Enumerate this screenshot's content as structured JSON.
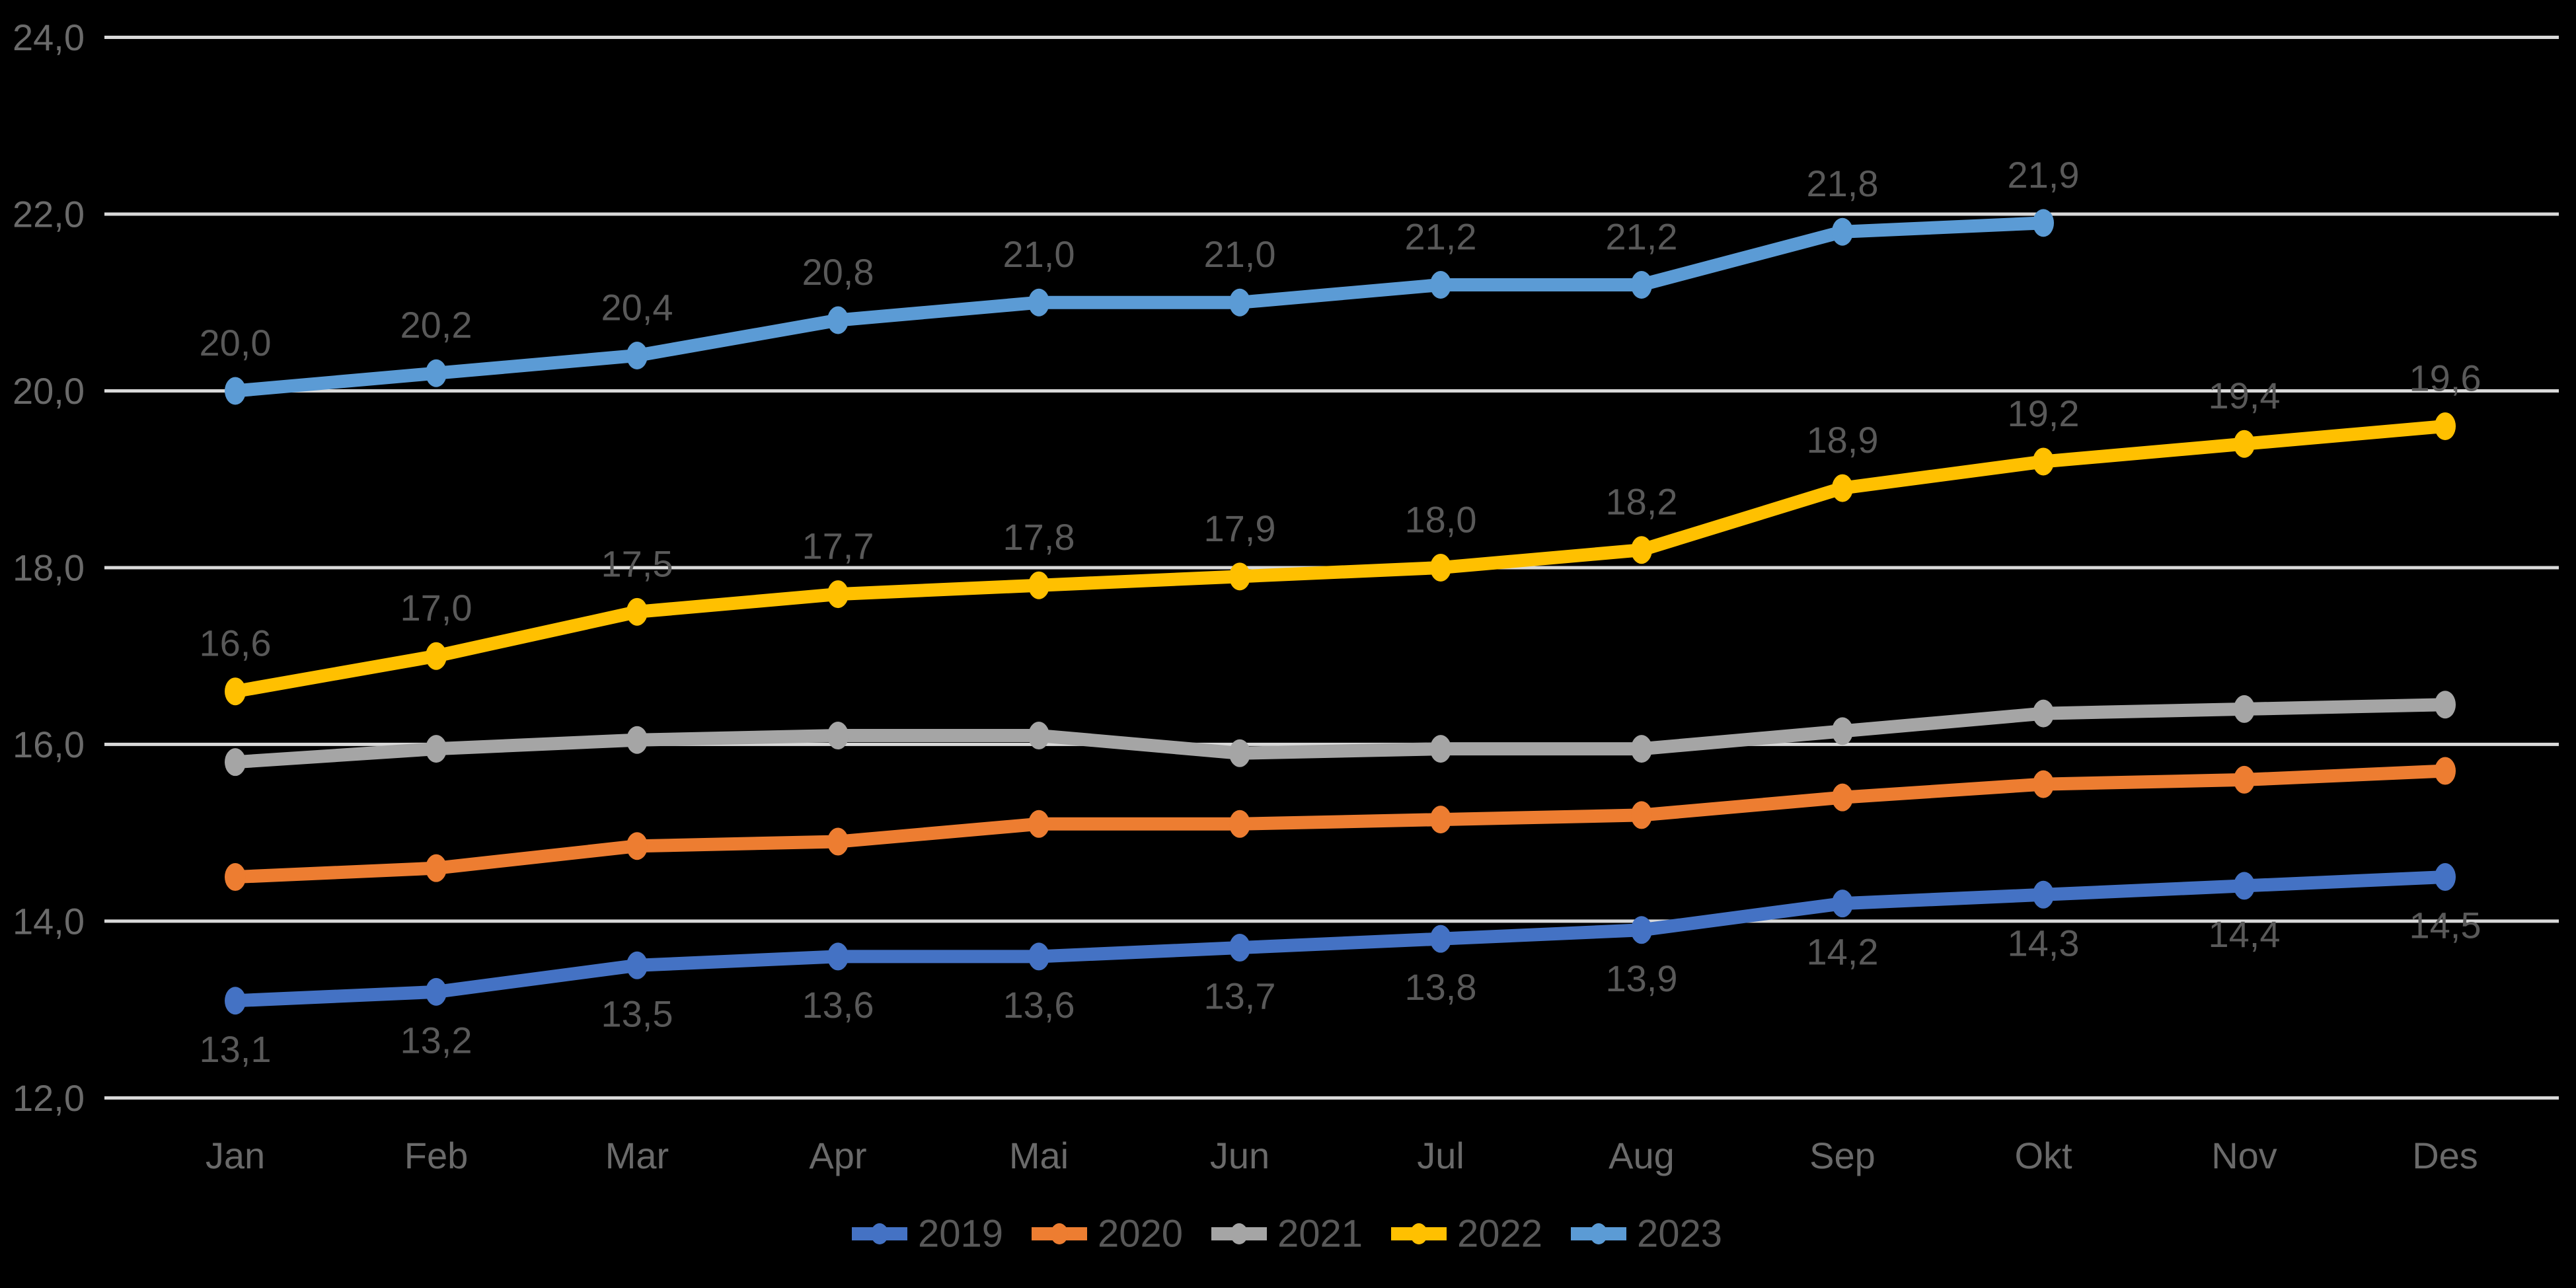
{
  "chart_data": {
    "type": "line",
    "title": "",
    "categories": [
      "Jan",
      "Feb",
      "Mar",
      "Apr",
      "Mai",
      "Jun",
      "Jul",
      "Aug",
      "Sep",
      "Okt",
      "Nov",
      "Des"
    ],
    "series": [
      {
        "name": "2019",
        "color": "#4472C4",
        "show_labels": true,
        "label_side": "below",
        "values": [
          13.1,
          13.2,
          13.5,
          13.6,
          13.6,
          13.7,
          13.8,
          13.9,
          14.2,
          14.3,
          14.4,
          14.5
        ]
      },
      {
        "name": "2020",
        "color": "#ED7D31",
        "show_labels": false,
        "label_side": "above",
        "values": [
          14.5,
          14.6,
          14.85,
          14.9,
          15.1,
          15.1,
          15.15,
          15.2,
          15.4,
          15.55,
          15.6,
          15.7
        ]
      },
      {
        "name": "2021",
        "color": "#A5A5A5",
        "show_labels": false,
        "label_side": "above",
        "values": [
          15.8,
          15.95,
          16.05,
          16.1,
          16.1,
          15.9,
          15.95,
          15.95,
          16.15,
          16.35,
          16.4,
          16.45
        ]
      },
      {
        "name": "2022",
        "color": "#FFC000",
        "show_labels": true,
        "label_side": "above",
        "values": [
          16.6,
          17.0,
          17.5,
          17.7,
          17.8,
          17.9,
          18.0,
          18.2,
          18.9,
          19.2,
          19.4,
          19.6
        ]
      },
      {
        "name": "2023",
        "color": "#5B9BD5",
        "show_labels": true,
        "label_side": "above",
        "values": [
          20.0,
          20.2,
          20.4,
          20.8,
          21.0,
          21.0,
          21.2,
          21.2,
          21.8,
          21.9
        ]
      }
    ],
    "ylim": [
      12,
      24
    ],
    "ytick_step": 2,
    "ytick_labels": [
      "12,0",
      "14,0",
      "16,0",
      "18,0",
      "20,0",
      "22,0",
      "24,0"
    ],
    "decimal_separator": ",",
    "grid": true,
    "legend_position": "bottom",
    "legend_entries": [
      "2019",
      "2020",
      "2021",
      "2022",
      "2023"
    ],
    "colors": {
      "background": "#000000",
      "gridline": "#D9D9D9",
      "axis_label": "#6A6A6A",
      "data_label": "#595959",
      "legend_label": "#595959"
    }
  }
}
